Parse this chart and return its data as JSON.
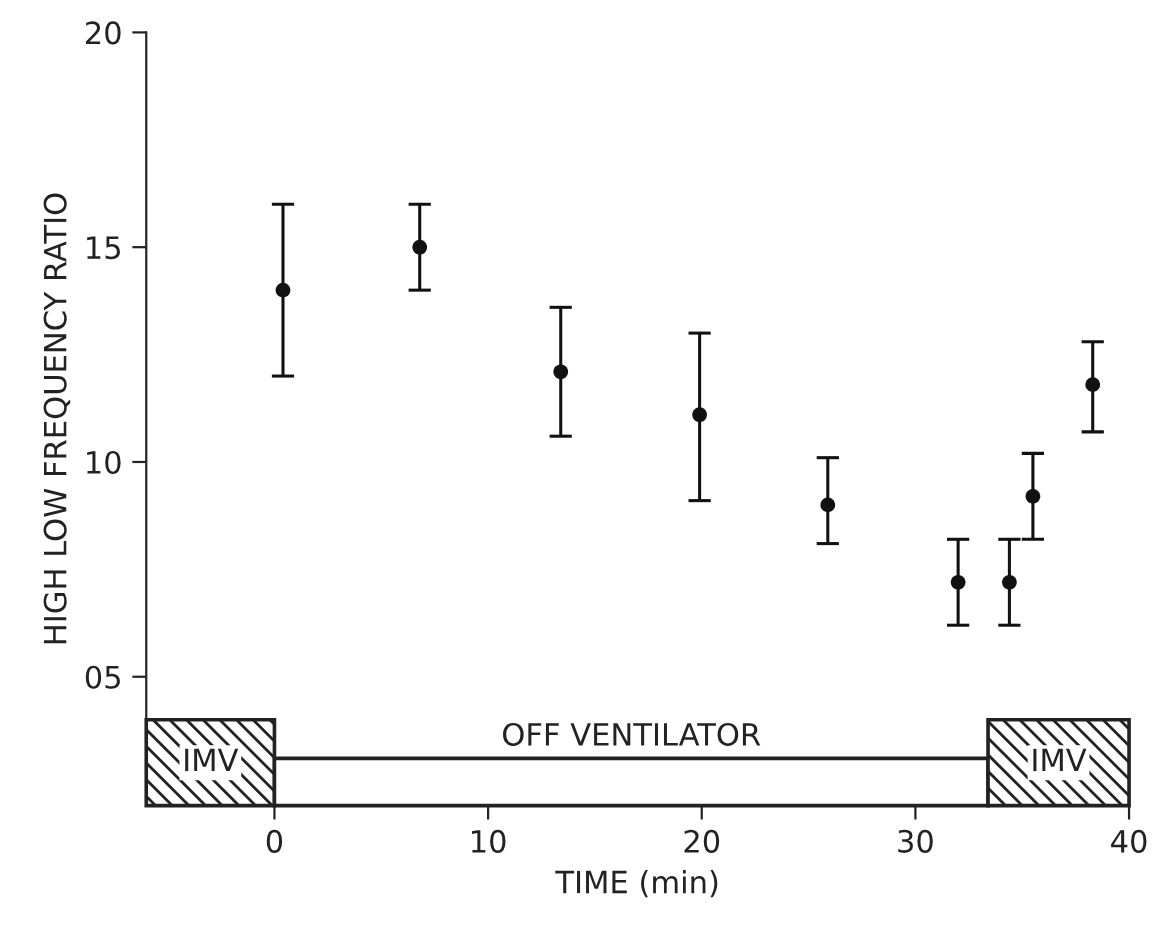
{
  "chart_data": {
    "type": "scatter",
    "xlabel": "TIME (min)",
    "ylabel": "HIGH LOW FREQUENCY RATIO",
    "x": [
      0.4,
      6.8,
      13.4,
      19.9,
      25.9,
      32.0,
      34.4,
      35.5,
      38.3
    ],
    "series": [
      {
        "color": "#111111",
        "values": [
          14.0,
          15.0,
          12.1,
          11.1,
          9.0,
          7.2,
          7.2,
          9.2,
          11.8
        ],
        "errors": [
          [
            12.0,
            16.0
          ],
          [
            14.0,
            16.0
          ],
          [
            10.6,
            13.6
          ],
          [
            9.1,
            13.0
          ],
          [
            8.1,
            10.1
          ],
          [
            6.2,
            8.2
          ],
          [
            6.2,
            8.2
          ],
          [
            8.2,
            10.2
          ],
          [
            10.7,
            12.8
          ]
        ]
      }
    ],
    "marker": "circle",
    "xlim": [
      -6,
      40
    ],
    "ylim": [
      2,
      20
    ],
    "xticks": [
      0,
      10,
      20,
      30,
      40
    ],
    "yticks": [
      {
        "value": 5,
        "label": "05"
      },
      10,
      15,
      20
    ],
    "grid": false,
    "legend": false,
    "bands": [
      {
        "axis": "x",
        "from": -6,
        "to": 0,
        "label": "IMV",
        "color": "#222222"
      },
      {
        "axis": "x",
        "from": 0,
        "to": 33.4,
        "label": "OFF VENTILATOR"
      },
      {
        "axis": "x",
        "from": 33.4,
        "to": 40,
        "label": "IMV",
        "color": "#222222"
      }
    ]
  }
}
